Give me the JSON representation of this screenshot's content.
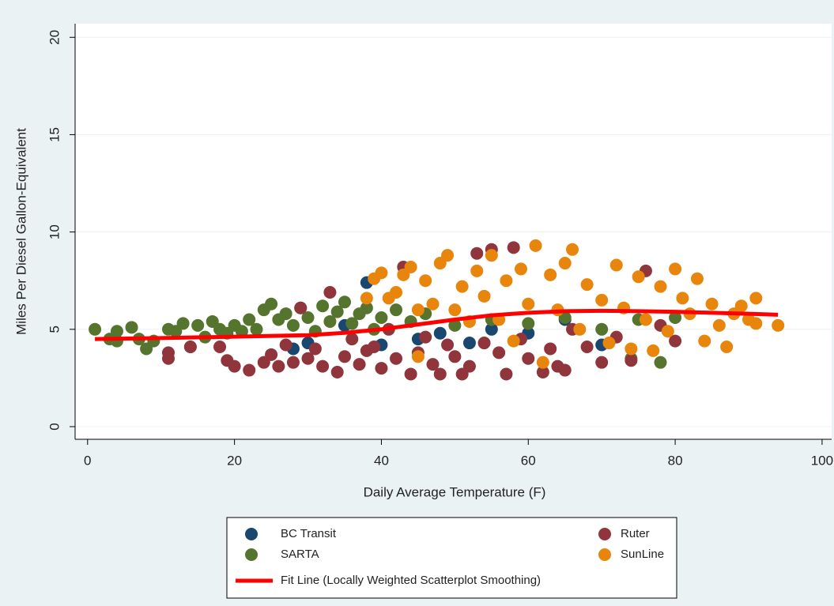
{
  "chart_data": {
    "type": "scatter",
    "x_label": "Daily Average Temperature (F)",
    "y_label": "Miles Per Diesel Gallon-Equivalent",
    "xlim": [
      -1.7,
      101.3
    ],
    "ylim": [
      -0.65,
      20.7
    ],
    "xticks": [
      0,
      20,
      40,
      60,
      80,
      100
    ],
    "yticks": [
      0,
      5,
      10,
      15,
      20
    ],
    "grid": true,
    "series": [
      {
        "name": "BC Transit",
        "color": "#1a476f",
        "x": [
          28,
          30,
          38,
          40,
          45,
          52,
          55,
          60,
          65,
          70,
          35,
          48
        ],
        "values": [
          4.0,
          4.3,
          7.4,
          4.2,
          4.5,
          4.3,
          5.0,
          4.8,
          5.5,
          4.2,
          5.2,
          4.8
        ]
      },
      {
        "name": "SARTA",
        "color": "#55752f",
        "x": [
          1,
          3,
          4,
          4,
          6,
          7,
          8,
          9,
          11,
          12,
          13,
          14,
          15,
          16,
          17,
          18,
          19,
          20,
          21,
          22,
          23,
          24,
          25,
          26,
          27,
          28,
          29,
          30,
          31,
          32,
          33,
          34,
          35,
          36,
          37,
          38,
          39,
          40,
          42,
          44,
          46,
          50,
          55,
          60,
          65,
          70,
          74,
          78,
          75,
          80
        ],
        "values": [
          5.0,
          4.5,
          4.4,
          4.9,
          5.1,
          4.5,
          4.0,
          4.4,
          5.0,
          4.9,
          5.3,
          4.1,
          5.2,
          4.6,
          5.4,
          5.0,
          4.8,
          5.2,
          4.9,
          5.5,
          5.0,
          6.0,
          6.3,
          5.5,
          5.8,
          5.2,
          6.1,
          5.6,
          4.9,
          6.2,
          5.4,
          5.9,
          6.4,
          5.3,
          5.8,
          6.1,
          5.0,
          5.6,
          6.0,
          5.4,
          5.8,
          5.2,
          5.5,
          5.3,
          5.6,
          5.0,
          3.5,
          3.3,
          5.5,
          5.6
        ]
      },
      {
        "name": "Ruter",
        "color": "#90353b",
        "x": [
          11,
          11,
          14,
          18,
          19,
          20,
          22,
          24,
          25,
          26,
          27,
          28,
          29,
          30,
          31,
          32,
          33,
          34,
          35,
          36,
          37,
          38,
          39,
          40,
          41,
          42,
          43,
          44,
          45,
          46,
          47,
          48,
          49,
          50,
          51,
          52,
          53,
          54,
          55,
          56,
          57,
          58,
          59,
          60,
          62,
          63,
          64,
          65,
          66,
          68,
          70,
          72,
          74,
          76,
          78,
          80
        ],
        "values": [
          3.5,
          3.8,
          4.1,
          4.1,
          3.4,
          3.1,
          2.9,
          3.3,
          3.7,
          3.1,
          4.2,
          3.3,
          6.1,
          3.5,
          4.0,
          3.1,
          6.9,
          2.8,
          3.6,
          4.5,
          3.2,
          3.9,
          4.1,
          3.0,
          5.0,
          3.5,
          8.2,
          2.7,
          3.8,
          4.6,
          3.2,
          2.7,
          4.2,
          3.6,
          2.7,
          3.1,
          8.9,
          4.3,
          9.1,
          3.8,
          2.7,
          9.2,
          4.5,
          3.5,
          2.8,
          4.0,
          3.1,
          2.9,
          5.0,
          4.1,
          3.3,
          4.6,
          3.4,
          8.0,
          5.2,
          4.4
        ]
      },
      {
        "name": "SunLine",
        "color": "#e8850c",
        "x": [
          38,
          39,
          40,
          41,
          42,
          43,
          44,
          45,
          45,
          46,
          47,
          48,
          49,
          50,
          51,
          52,
          53,
          54,
          55,
          56,
          57,
          58,
          59,
          60,
          61,
          62,
          63,
          64,
          65,
          66,
          67,
          68,
          70,
          71,
          72,
          73,
          74,
          75,
          76,
          77,
          78,
          79,
          80,
          81,
          82,
          83,
          84,
          85,
          86,
          87,
          88,
          89,
          90,
          91,
          91,
          94
        ],
        "values": [
          6.6,
          7.6,
          7.9,
          6.6,
          6.9,
          7.8,
          8.2,
          6.0,
          3.6,
          7.5,
          6.3,
          8.4,
          8.8,
          6.0,
          7.2,
          5.4,
          8.0,
          6.7,
          8.8,
          5.5,
          7.5,
          4.4,
          8.1,
          6.3,
          9.3,
          3.3,
          7.8,
          6.0,
          8.4,
          9.1,
          5.0,
          7.3,
          6.5,
          4.3,
          8.3,
          6.1,
          4.0,
          7.7,
          5.5,
          3.9,
          7.2,
          4.9,
          8.1,
          6.6,
          5.8,
          7.6,
          4.4,
          6.3,
          5.2,
          4.1,
          5.8,
          6.2,
          5.5,
          6.6,
          5.3,
          5.2
        ]
      }
    ],
    "fit_line": {
      "name": "Fit Line (Locally Weighted Scatterplot Smoothing)",
      "color": "#ff0000",
      "x": [
        1,
        10,
        20,
        30,
        35,
        40,
        45,
        50,
        55,
        60,
        65,
        70,
        75,
        80,
        85,
        90,
        94
      ],
      "values": [
        4.5,
        4.55,
        4.62,
        4.7,
        4.82,
        5.0,
        5.25,
        5.5,
        5.72,
        5.85,
        5.93,
        5.95,
        5.93,
        5.9,
        5.85,
        5.8,
        5.75
      ]
    }
  }
}
